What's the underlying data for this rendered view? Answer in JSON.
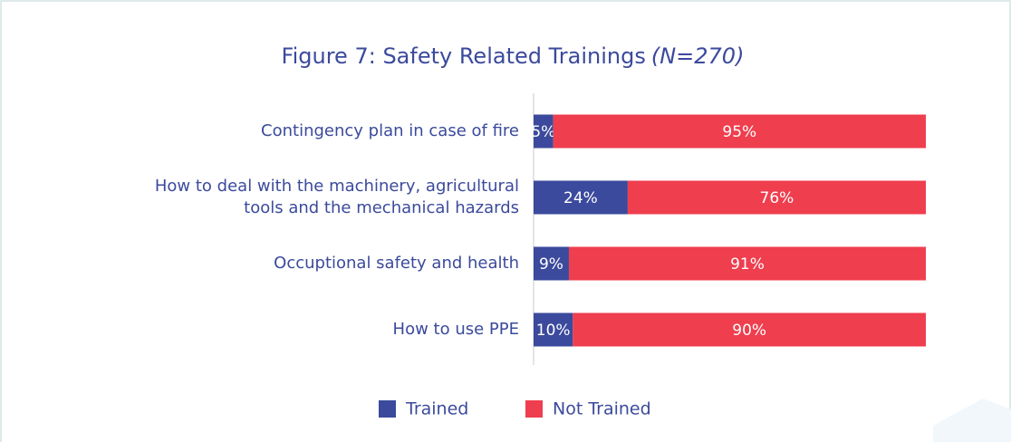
{
  "chart_data": {
    "type": "stacked_bar_horizontal",
    "title": "Figure 7: Safety Related Trainings",
    "title_note": "(N=270)",
    "categories": [
      "Contingency plan in case of fire",
      "How to deal with the machinery, agricultural\ntools and the mechanical hazards",
      "Occuptional safety and health",
      "How to use PPE"
    ],
    "xlim": [
      0,
      100
    ],
    "series": [
      {
        "name": "Trained",
        "color": "#3b4a9c",
        "values": [
          5,
          24,
          9,
          10
        ],
        "value_labels": [
          "5%",
          "24%",
          "9%",
          "10%"
        ]
      },
      {
        "name": "Not Trained",
        "color": "#ef3e4e",
        "values": [
          95,
          76,
          91,
          90
        ],
        "value_labels": [
          "95%",
          "76%",
          "91%",
          "90%"
        ]
      }
    ],
    "legend": "bottom"
  }
}
